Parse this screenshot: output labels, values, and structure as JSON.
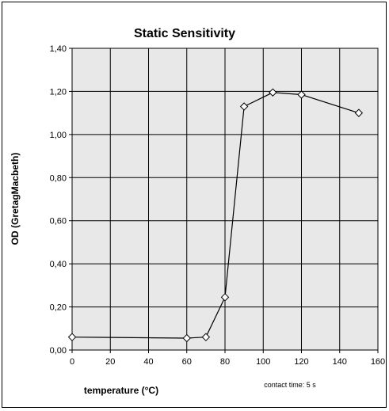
{
  "chart_data": {
    "type": "line",
    "title": "Static Sensitivity",
    "xlabel": "temperature (°C)",
    "ylabel": "OD (GretagMacbeth)",
    "annotation": "contact time: 5 s",
    "xlim": [
      0,
      160
    ],
    "ylim": [
      0,
      1.4
    ],
    "x_ticks": [
      "0",
      "20",
      "40",
      "60",
      "80",
      "100",
      "120",
      "140",
      "160"
    ],
    "y_ticks": [
      "0,00",
      "0,20",
      "0,40",
      "0,60",
      "0,80",
      "1,00",
      "1,20",
      "1,40"
    ],
    "grid": true,
    "plot_background": "#e8e8e8",
    "series": [
      {
        "x": [
          0,
          60,
          70,
          80,
          90,
          105,
          120,
          150
        ],
        "y": [
          0.06,
          0.055,
          0.06,
          0.245,
          1.13,
          1.195,
          1.185,
          1.1
        ]
      }
    ]
  }
}
